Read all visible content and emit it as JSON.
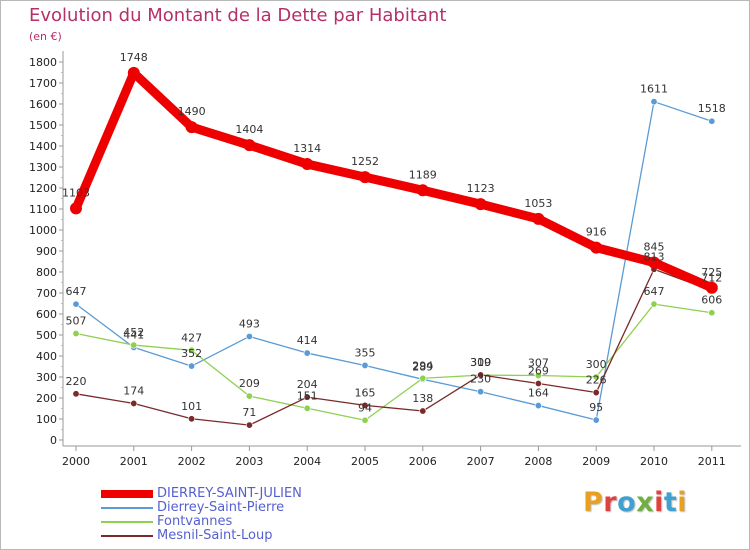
{
  "header": {
    "title": "Evolution du Montant de la Dette par Habitant",
    "subtitle": "(en €)"
  },
  "brand": {
    "text": "Proxiti",
    "colors": [
      "#e8a020",
      "#e04040",
      "#40a0d0",
      "#70b040",
      "#e04040",
      "#40a0d0",
      "#e8a020"
    ]
  },
  "chart_data": {
    "type": "line",
    "title": "Evolution du Montant de la Dette par Habitant",
    "subtitle": "(en €)",
    "xlabel": "",
    "ylabel": "",
    "x": [
      "2000",
      "2001",
      "2002",
      "2003",
      "2004",
      "2005",
      "2006",
      "2007",
      "2008",
      "2009",
      "2010",
      "2011"
    ],
    "ylim": [
      0,
      1800
    ],
    "ytick_step": 100,
    "grid": false,
    "legend_position": "bottom-left",
    "series": [
      {
        "name": "DIERREY-SAINT-JULIEN",
        "color": "#ee0000",
        "values": [
          1103,
          1748,
          1490,
          1404,
          1314,
          1252,
          1189,
          1123,
          1053,
          916,
          845,
          725
        ],
        "labels": [
          "1103",
          "1748",
          "1490",
          "1404",
          "1314",
          "1252",
          "1189",
          "1123",
          "1053",
          "916",
          "845",
          "725"
        ]
      },
      {
        "name": "Dierrey-Saint-Pierre",
        "color": "#5a9bd5",
        "values": [
          647,
          441,
          352,
          493,
          414,
          355,
          289,
          230,
          164,
          95,
          1611,
          1518
        ],
        "labels": [
          "647",
          "441",
          "352",
          "493",
          "414",
          "355",
          "289",
          "230",
          "164",
          "95",
          "1611",
          "1518"
        ]
      },
      {
        "name": "Fontvannes",
        "color": "#90d050",
        "values": [
          507,
          452,
          427,
          209,
          151,
          94,
          294,
          309,
          307,
          300,
          647,
          606
        ],
        "labels": [
          "507",
          "452",
          "427",
          "209",
          "151",
          "94",
          "294",
          "309",
          "307",
          "300",
          "647",
          "606"
        ]
      },
      {
        "name": "Mesnil-Saint-Loup",
        "color": "#7a2a2a",
        "values": [
          220,
          174,
          101,
          71,
          204,
          165,
          138,
          310,
          269,
          226,
          813,
          712
        ],
        "labels": [
          "220",
          "174",
          "101",
          "71",
          "204",
          "165",
          "138",
          "310",
          "269",
          "226",
          "813",
          "712"
        ]
      }
    ]
  }
}
